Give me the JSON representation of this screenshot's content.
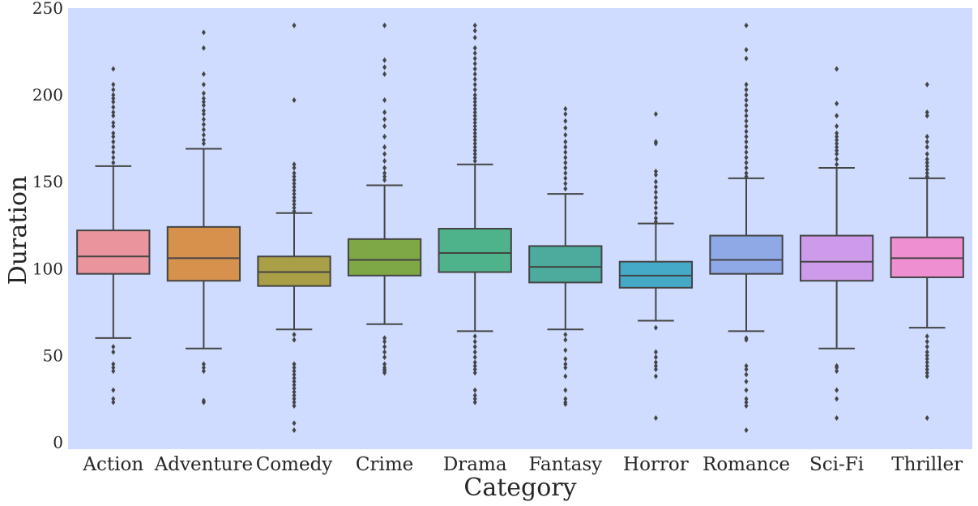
{
  "chart_data": {
    "type": "boxplot",
    "xlabel": "Category",
    "ylabel": "Duration",
    "ylim": [
      -4,
      250
    ],
    "yticks": [
      0,
      50,
      100,
      150,
      200,
      250
    ],
    "grid": false,
    "background_color": "#cfdcff",
    "series": [
      {
        "category": "Action",
        "color": "#ea949d",
        "q1": 97,
        "median": 107,
        "q3": 122,
        "whisker_low": 60,
        "whisker_high": 159,
        "outliers": [
          215,
          206,
          203,
          200,
          198,
          196,
          193,
          190,
          188,
          184,
          182,
          178,
          176,
          173,
          170,
          167,
          164,
          161,
          55,
          52,
          45,
          43,
          41,
          30,
          25,
          23
        ]
      },
      {
        "category": "Adventure",
        "color": "#d6914d",
        "q1": 93,
        "median": 106,
        "q3": 124,
        "whisker_low": 54,
        "whisker_high": 169,
        "outliers": [
          236,
          227,
          212,
          206,
          201,
          198,
          196,
          194,
          191,
          189,
          186,
          183,
          180,
          177,
          174,
          172,
          45,
          43,
          41,
          24,
          23
        ]
      },
      {
        "category": "Comedy",
        "color": "#a99f46",
        "q1": 90,
        "median": 98,
        "q3": 107,
        "whisker_low": 65,
        "whisker_high": 132,
        "outliers": [
          240,
          197,
          160,
          158,
          155,
          153,
          151,
          149,
          147,
          145,
          143,
          141,
          139,
          137,
          135,
          133,
          62,
          59,
          45,
          43,
          41,
          39,
          37,
          35,
          33,
          31,
          29,
          27,
          25,
          23,
          21,
          11,
          7
        ]
      },
      {
        "category": "Crime",
        "color": "#7ea845",
        "q1": 96,
        "median": 105,
        "q3": 117,
        "whisker_low": 68,
        "whisker_high": 148,
        "outliers": [
          240,
          220,
          216,
          212,
          197,
          190,
          186,
          182,
          176,
          170,
          166,
          162,
          158,
          155,
          153,
          151,
          60,
          58,
          55,
          52,
          49,
          45,
          43,
          42,
          41,
          40
        ]
      },
      {
        "category": "Drama",
        "color": "#4eb38b",
        "q1": 98,
        "median": 109,
        "q3": 123,
        "whisker_low": 64,
        "whisker_high": 160,
        "outliers": [
          240,
          237,
          233,
          227,
          224,
          221,
          218,
          215,
          212,
          209,
          206,
          203,
          200,
          198,
          196,
          194,
          192,
          190,
          188,
          186,
          184,
          182,
          180,
          178,
          176,
          174,
          172,
          170,
          168,
          166,
          164,
          162,
          61,
          58,
          55,
          52,
          49,
          46,
          44,
          42,
          40,
          30,
          27,
          25,
          23
        ]
      },
      {
        "category": "Fantasy",
        "color": "#4cab9d",
        "q1": 92,
        "median": 101,
        "q3": 113,
        "whisker_low": 65,
        "whisker_high": 143,
        "outliers": [
          192,
          189,
          185,
          181,
          177,
          173,
          170,
          167,
          164,
          161,
          158,
          155,
          152,
          149,
          146,
          62,
          59,
          53,
          48,
          45,
          43,
          38,
          30,
          25,
          23,
          22
        ]
      },
      {
        "category": "Horror",
        "color": "#45aac8",
        "q1": 89,
        "median": 96,
        "q3": 104,
        "whisker_low": 70,
        "whisker_high": 126,
        "outliers": [
          189,
          173,
          172,
          156,
          154,
          150,
          147,
          144,
          141,
          138,
          135,
          132,
          129,
          127,
          66,
          52,
          49,
          46,
          44,
          42,
          38,
          14
        ]
      },
      {
        "category": "Romance",
        "color": "#8fa8e6",
        "q1": 97,
        "median": 105,
        "q3": 119,
        "whisker_low": 64,
        "whisker_high": 152,
        "outliers": [
          240,
          226,
          221,
          206,
          203,
          200,
          197,
          194,
          191,
          188,
          185,
          182,
          179,
          176,
          173,
          170,
          167,
          164,
          161,
          158,
          155,
          153,
          60,
          59,
          44,
          42,
          39,
          35,
          30,
          25,
          23,
          21,
          7
        ]
      },
      {
        "category": "Sci-Fi",
        "color": "#cd9be9",
        "q1": 93,
        "median": 104,
        "q3": 119,
        "whisker_low": 54,
        "whisker_high": 158,
        "outliers": [
          215,
          195,
          188,
          182,
          178,
          176,
          174,
          172,
          170,
          168,
          166,
          163,
          160,
          44,
          43,
          41,
          30,
          25,
          14
        ]
      },
      {
        "category": "Thriller",
        "color": "#ed8fd0",
        "q1": 95,
        "median": 106,
        "q3": 118,
        "whisker_low": 66,
        "whisker_high": 152,
        "outliers": [
          206,
          190,
          188,
          176,
          173,
          170,
          166,
          163,
          161,
          159,
          157,
          155,
          153,
          61,
          58,
          55,
          52,
          50,
          48,
          46,
          44,
          42,
          40,
          38,
          14
        ]
      }
    ]
  }
}
